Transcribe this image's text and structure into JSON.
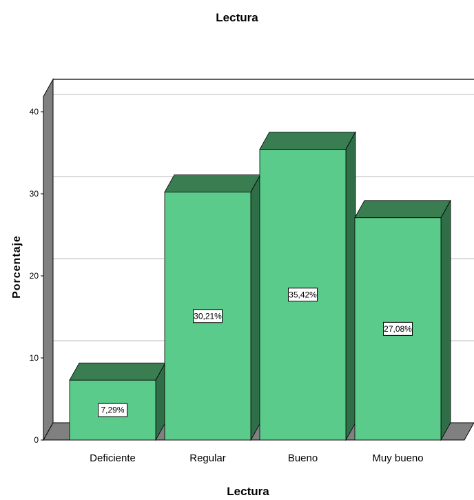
{
  "chart_data": {
    "type": "bar",
    "title": "Lectura",
    "xlabel": "Lectura",
    "ylabel": "Porcentaje",
    "categories": [
      "Deficiente",
      "Regular",
      "Bueno",
      "Muy bueno"
    ],
    "values": [
      7.29,
      30.21,
      35.42,
      27.08
    ],
    "data_labels": [
      "7,29%",
      "30,21%",
      "35,42%",
      "27,08%"
    ],
    "yticks": [
      0,
      10,
      20,
      30,
      40
    ],
    "ylim": [
      0,
      40
    ],
    "grid": true,
    "style": "3d",
    "colors": {
      "bar_front": "#5bcb8b",
      "bar_top": "#3a7d51",
      "bar_side": "#2f6e47",
      "wall": "#808080",
      "gridline": "#c8c8c8"
    }
  }
}
